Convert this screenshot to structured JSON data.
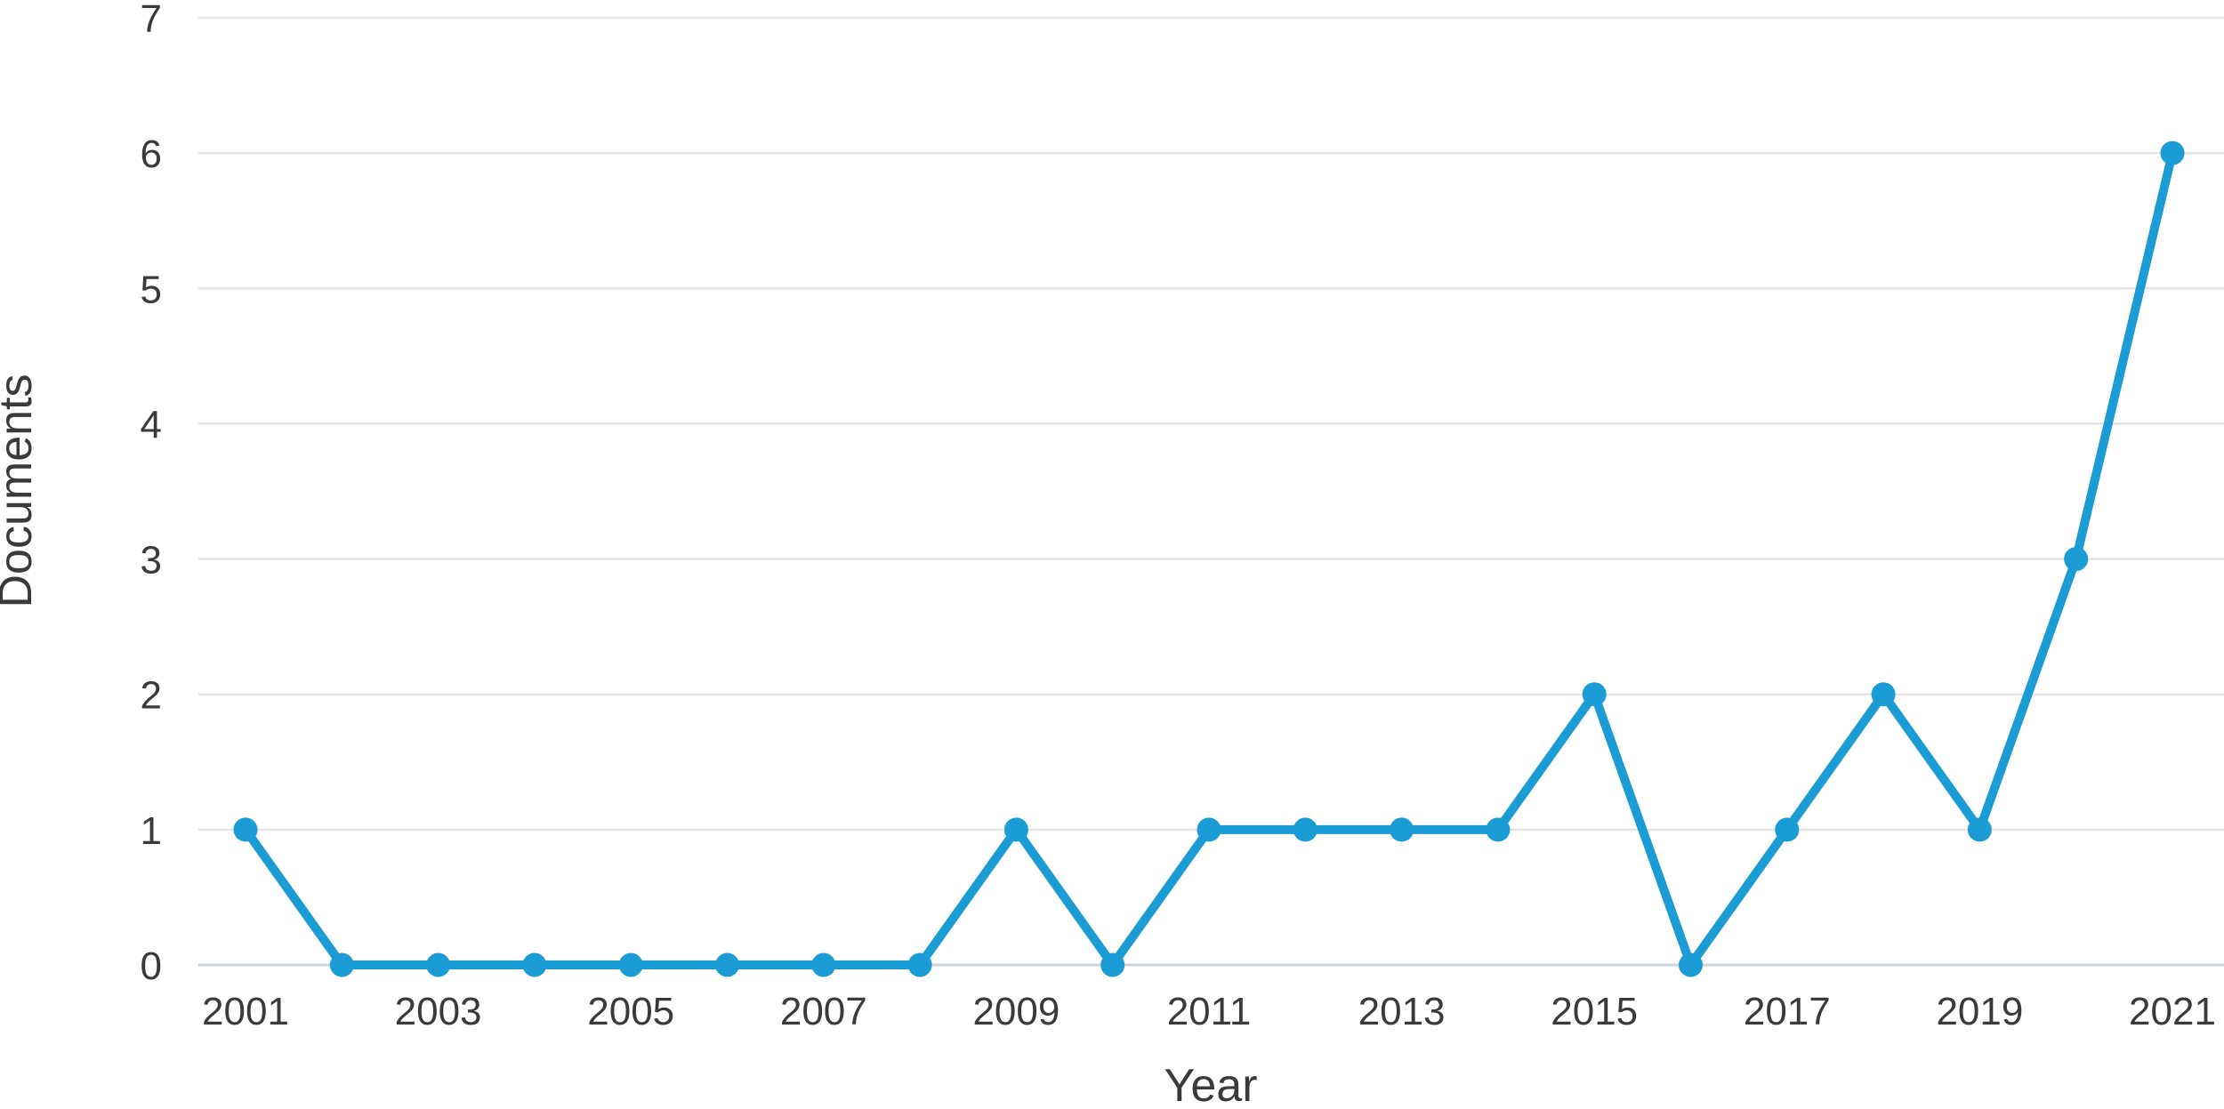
{
  "chart_data": {
    "type": "line",
    "title": "",
    "xlabel": "Year",
    "ylabel": "Documents",
    "x": [
      2001,
      2002,
      2003,
      2004,
      2005,
      2006,
      2007,
      2008,
      2009,
      2010,
      2011,
      2012,
      2013,
      2014,
      2015,
      2016,
      2017,
      2018,
      2019,
      2020,
      2021
    ],
    "series": [
      {
        "name": "Documents",
        "values": [
          1,
          0,
          0,
          0,
          0,
          0,
          0,
          0,
          1,
          0,
          1,
          1,
          1,
          1,
          2,
          0,
          1,
          2,
          1,
          3,
          6
        ]
      }
    ],
    "xticks": [
      2001,
      2003,
      2005,
      2007,
      2009,
      2011,
      2013,
      2015,
      2017,
      2019,
      2021
    ],
    "yticks": [
      0,
      1,
      2,
      3,
      4,
      5,
      6,
      7
    ],
    "ylim": [
      0,
      7
    ],
    "xlim": [
      2001,
      2021
    ],
    "grid": "horizontal",
    "legend": "none",
    "marker": "circle",
    "colors": {
      "line": "#1b9cd4",
      "marker": "#1b9cd4",
      "gridline": "#e4e4e4",
      "zero_axis_line": "#ccd2de",
      "text": "#3a3a3a"
    }
  }
}
